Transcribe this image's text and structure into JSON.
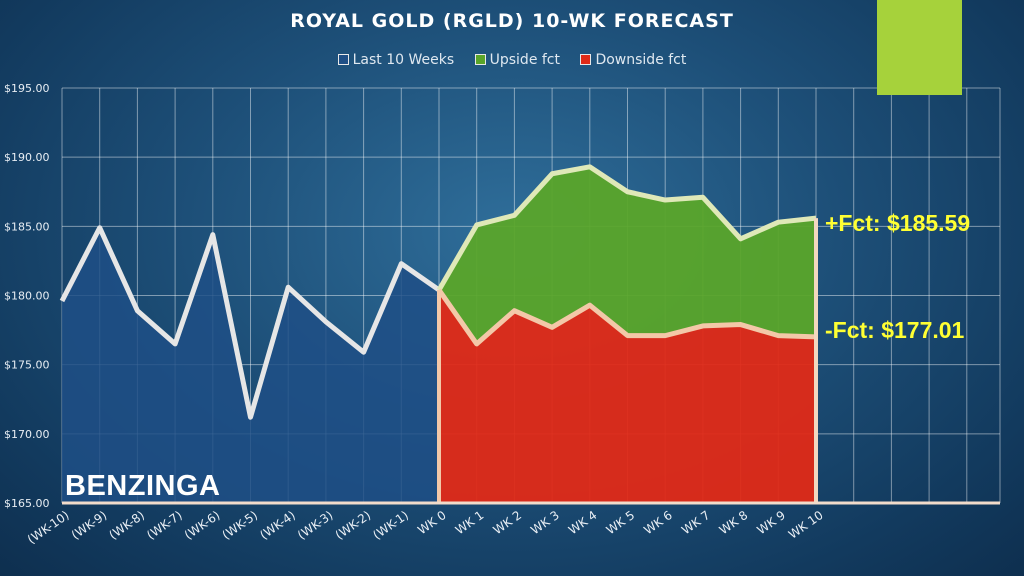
{
  "colors": {
    "accent": "#a6d23b",
    "last10_fill": "#1f4f86",
    "upside_fill": "#5aa52a",
    "downside_fill": "#e02a17",
    "line": "#e6e6e6",
    "fct_label": "#ffff33"
  },
  "fct_labels": {
    "upside": "+Fct: $185.59",
    "downside": "-Fct: $177.01"
  },
  "brand": "BENZINGA",
  "chart_data": {
    "type": "area",
    "title": "ROYAL GOLD (RGLD) 10-WK FORECAST",
    "categories": [
      "(WK-10)",
      "(WK-9)",
      "(WK-8)",
      "(WK-7)",
      "(WK-6)",
      "(WK-5)",
      "(WK-4)",
      "(WK-3)",
      "(WK-2)",
      "(WK-1)",
      "WK 0",
      "WK 1",
      "WK 2",
      "WK 3",
      "WK 4",
      "WK 5",
      "WK 6",
      "WK 7",
      "WK 8",
      "WK 9",
      "WK 10"
    ],
    "ylim": [
      165,
      195
    ],
    "yticks": [
      "$165.00",
      "$170.00",
      "$175.00",
      "$180.00",
      "$185.00",
      "$190.00",
      "$195.00"
    ],
    "grid": true,
    "legend_position": "top",
    "series": [
      {
        "name": "Last 10 Weeks",
        "values": [
          179.6,
          184.9,
          178.9,
          176.5,
          184.4,
          171.2,
          180.6,
          178.1,
          175.9,
          182.3,
          180.4,
          null,
          null,
          null,
          null,
          null,
          null,
          null,
          null,
          null,
          null
        ]
      },
      {
        "name": "Upside fct",
        "values": [
          null,
          null,
          null,
          null,
          null,
          null,
          null,
          null,
          null,
          null,
          180.4,
          185.1,
          185.8,
          188.8,
          189.3,
          187.5,
          186.9,
          187.1,
          184.1,
          185.3,
          185.59
        ]
      },
      {
        "name": "Downside fct",
        "values": [
          null,
          null,
          null,
          null,
          null,
          null,
          null,
          null,
          null,
          null,
          180.4,
          176.5,
          178.9,
          177.7,
          179.3,
          177.1,
          177.1,
          177.8,
          177.9,
          177.1,
          177.01
        ]
      }
    ]
  }
}
